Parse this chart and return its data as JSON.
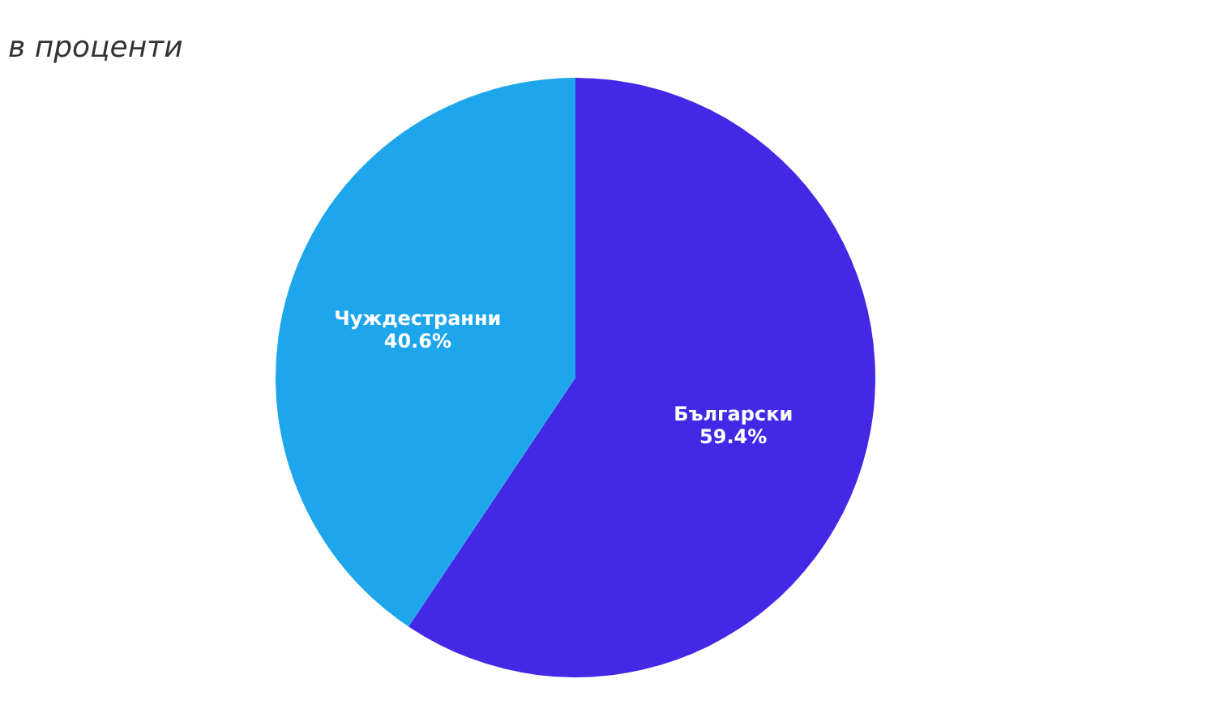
{
  "chart_data": {
    "type": "pie",
    "subtitle": "в проценти",
    "categories": [
      "Български",
      "Чуждестранни"
    ],
    "values": [
      59.4,
      40.6
    ],
    "colors": [
      "#4329e6",
      "#1da6ec"
    ],
    "value_labels": [
      "59.4%",
      "40.6%"
    ],
    "legend": false
  }
}
